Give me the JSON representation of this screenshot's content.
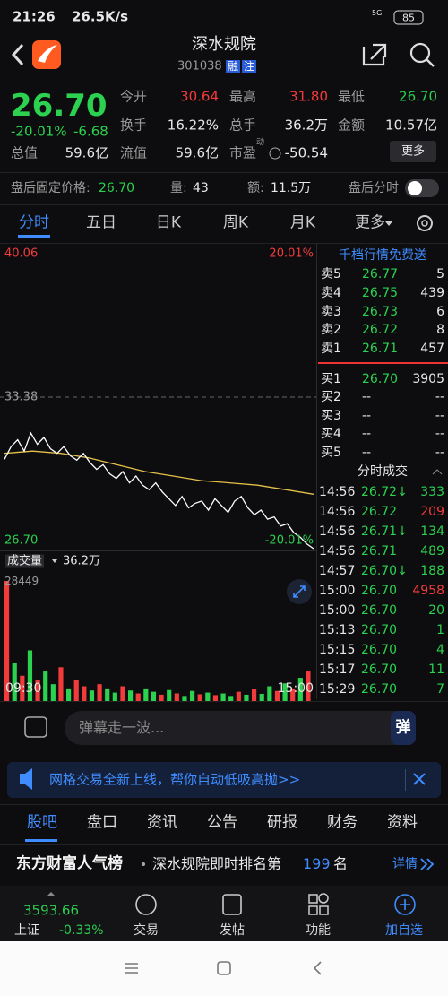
{
  "status_bar": {
    "time": "21:26",
    "speed": "26.5K/s",
    "signal": "5G",
    "battery": "85"
  },
  "header": {
    "title": "深水规院",
    "code": "301038",
    "badges": [
      "融",
      "注"
    ]
  },
  "quote": {
    "price": "26.70",
    "change_pct": "-20.01%",
    "change": "-6.68",
    "total_value_label": "总值",
    "total_value": "59.6亿",
    "stats": [
      [
        "今开",
        "30.64"
      ],
      [
        "最高",
        "31.80"
      ],
      [
        "最低",
        "26.70"
      ],
      [
        "换手",
        "16.22%"
      ],
      [
        "总手",
        "36.2万"
      ],
      [
        "金额",
        "10.57亿"
      ],
      [
        "流值",
        "59.6亿"
      ],
      [
        "市盈",
        "-50.54"
      ]
    ],
    "pe_sup": "动",
    "more": "更多"
  },
  "after_hours": {
    "price_label": "盘后固定价格:",
    "price": "26.70",
    "volume_label": "量:",
    "volume": "43",
    "amount_label": "额:",
    "amount": "11.5万",
    "timeshare": "盘后分时"
  },
  "tabs": [
    "分时",
    "五日",
    "日K",
    "周K",
    "月K",
    "更多"
  ],
  "intraday": {
    "ylim": [
      26.7,
      40.06
    ],
    "yticks": [
      40.06,
      33.38,
      {
        "value": 26.7,
        "label": "26.70"
      }
    ],
    "pct_ticks": [
      "20.01%",
      "-20.01%"
    ],
    "price": [
      30.64,
      31.2,
      31.5,
      31.0,
      31.8,
      31.3,
      31.6,
      31.1,
      30.9,
      31.2,
      30.8,
      30.6,
      30.9,
      30.5,
      30.2,
      30.4,
      30.0,
      29.8,
      30.1,
      29.6,
      29.9,
      29.5,
      29.3,
      29.6,
      29.2,
      28.9,
      28.6,
      29.0,
      28.5,
      28.7,
      28.8,
      28.4,
      28.9,
      28.6,
      28.3,
      28.8,
      29.0,
      28.5,
      28.2,
      28.4,
      28.0,
      28.1,
      27.7,
      27.8,
      27.4,
      27.2,
      26.9,
      26.7
    ],
    "avg": [
      30.9,
      31.0,
      30.9,
      30.7,
      30.4,
      30.1,
      29.9,
      29.7,
      29.6,
      29.5,
      29.3,
      29.1
    ],
    "volume_title": "成交量",
    "volume_total": "36.2万",
    "vlim": [
      0,
      28449
    ],
    "vticks": [
      28449
    ],
    "volume": [
      28449,
      9000,
      6000,
      12000,
      5000,
      7000,
      4000,
      8000,
      3000,
      5000,
      3500,
      2500,
      4000,
      3000,
      2000,
      3500,
      2500,
      1800,
      3000,
      2200,
      1500,
      2600,
      1800,
      1200,
      2400,
      1600,
      2000,
      1400,
      1800,
      1200,
      2200,
      1500,
      2800,
      1700,
      3500,
      2400,
      4200,
      3000,
      5500,
      7000
    ],
    "volume_up": [
      true,
      false,
      true,
      false,
      true,
      false,
      false,
      true,
      false,
      true,
      true,
      false,
      true,
      false,
      false,
      true,
      false,
      true,
      false,
      false,
      true,
      false,
      true,
      false,
      false,
      true,
      false,
      true,
      false,
      false,
      true,
      false,
      true,
      false,
      false,
      true,
      false,
      true,
      false,
      true
    ],
    "times": [
      "09:30",
      "15:00"
    ],
    "price_color": "#ffffff",
    "avg_color": "#e3c04a"
  },
  "order_book": {
    "promo": "千档行情免费送",
    "asks": [
      [
        "卖5",
        "26.77",
        "5"
      ],
      [
        "卖4",
        "26.75",
        "439"
      ],
      [
        "卖3",
        "26.73",
        "6"
      ],
      [
        "卖2",
        "26.72",
        "8"
      ],
      [
        "卖1",
        "26.71",
        "457"
      ]
    ],
    "bids": [
      [
        "买1",
        "26.70",
        "3905"
      ],
      [
        "买2",
        "--",
        "--"
      ],
      [
        "买3",
        "--",
        "--"
      ],
      [
        "买4",
        "--",
        "--"
      ],
      [
        "买5",
        "--",
        "--"
      ]
    ]
  },
  "trades": {
    "title": "分时成交",
    "rows": [
      {
        "time": "14:56",
        "price": "26.72↓",
        "volume": "333",
        "color": "#2bd14f"
      },
      {
        "time": "14:56",
        "price": "26.72",
        "volume": "209",
        "color": "#f23b3b"
      },
      {
        "time": "14:56",
        "price": "26.71↓",
        "volume": "134",
        "color": "#2bd14f"
      },
      {
        "time": "14:56",
        "price": "26.71",
        "volume": "489",
        "color": "#2bd14f"
      },
      {
        "time": "14:57",
        "price": "26.70↓",
        "volume": "188",
        "color": "#2bd14f"
      },
      {
        "time": "15:00",
        "price": "26.70",
        "volume": "4958",
        "color": "#f23b3b"
      },
      {
        "time": "15:00",
        "price": "26.70",
        "volume": "20",
        "color": "#2bd14f"
      },
      {
        "time": "15:13",
        "price": "26.70",
        "volume": "1",
        "color": "#2bd14f"
      },
      {
        "time": "15:15",
        "price": "26.70",
        "volume": "4",
        "color": "#2bd14f"
      },
      {
        "time": "15:17",
        "price": "26.70",
        "volume": "11",
        "color": "#2bd14f"
      },
      {
        "time": "15:29",
        "price": "26.70",
        "volume": "7",
        "color": "#2bd14f"
      }
    ]
  },
  "danmaku": {
    "placeholder": "弹幕走一波...",
    "button": "弹"
  },
  "banner": "网格交易全新上线，帮你自动低吸高抛>>",
  "sub_tabs": [
    "股吧",
    "盘口",
    "资讯",
    "公告",
    "研报",
    "财务",
    "资料"
  ],
  "ranking": {
    "brand": "东方财富人气榜",
    "text": "深水规院即时排名第",
    "rank": "199",
    "unit": "名",
    "detail": "详情"
  },
  "bottom": {
    "index": "3593.66",
    "index_name": "上证",
    "index_change": "-0.33%",
    "items": [
      "交易",
      "发帖",
      "功能",
      "加自选"
    ]
  }
}
